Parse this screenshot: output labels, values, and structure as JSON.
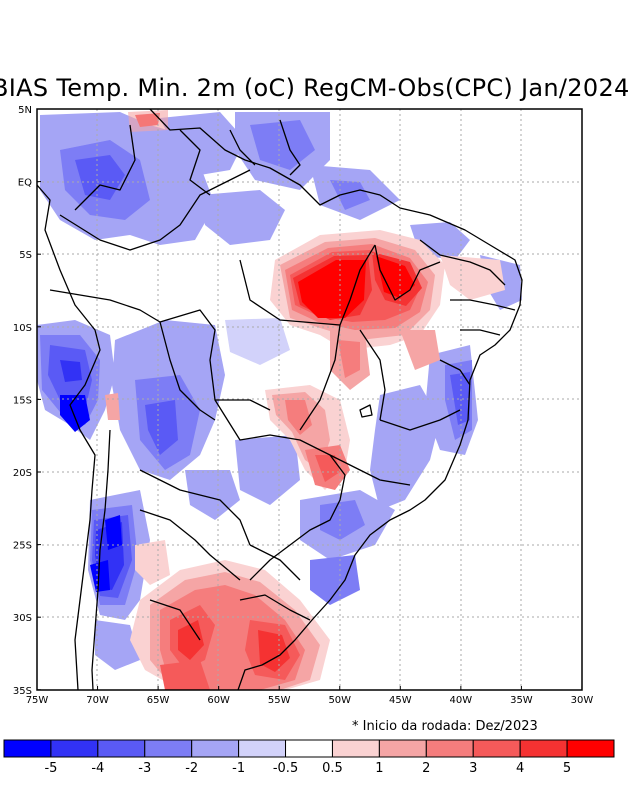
{
  "title": "BIAS Temp. Min. 2m (oC) RegCM-Obs(CPC) Jan/2024",
  "note": "* Inicio da rodada: Dez/2023",
  "lat_labels": [
    "5N",
    "EQ",
    "5S",
    "10S",
    "15S",
    "20S",
    "25S",
    "30S",
    "35S"
  ],
  "lon_labels": [
    "75W",
    "70W",
    "65W",
    "60W",
    "55W",
    "50W",
    "45W",
    "40W",
    "35W",
    "30W"
  ],
  "colorbar": {
    "labels": [
      "-5",
      "-4",
      "-3",
      "-2",
      "-1",
      "-0.5",
      "0.5",
      "1",
      "2",
      "3",
      "4",
      "5"
    ],
    "colors": [
      "#0000ff",
      "#3232f5",
      "#5a5af5",
      "#7d7df5",
      "#a5a5f5",
      "#d2d2fa",
      "#ffffff",
      "#fad2d2",
      "#f5a5a5",
      "#f57d7d",
      "#f55a5a",
      "#f53232",
      "#ff0000"
    ]
  }
}
